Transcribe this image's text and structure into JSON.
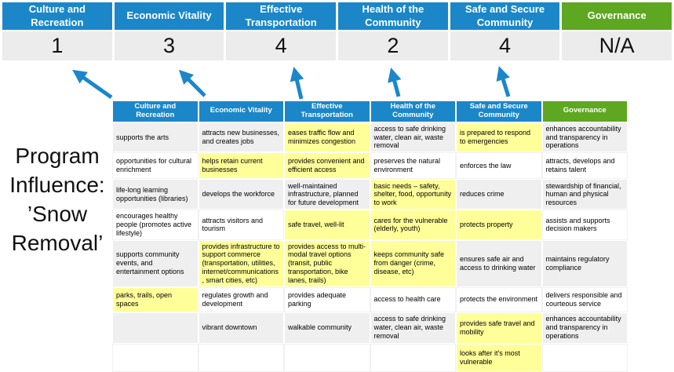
{
  "colors": {
    "header_blue": "#1B87C9",
    "header_green": "#5EA720",
    "highlight_yellow": "#FFFF99",
    "row_stripe_gray": "#EFEFEF",
    "score_band_gray": "#ECECEC",
    "arrow_blue": "#1B87C9"
  },
  "title": {
    "lines": [
      "Program",
      "Influence:",
      "’Snow",
      "Removal’"
    ]
  },
  "scoreboard": {
    "columns": [
      {
        "label": "Culture and Recreation",
        "score": "1"
      },
      {
        "label": "Economic Vitality",
        "score": "3"
      },
      {
        "label": "Effective Transportation",
        "score": "4"
      },
      {
        "label": "Health of the Community",
        "score": "2"
      },
      {
        "label": "Safe and Secure Community",
        "score": "4"
      },
      {
        "label": "Governance",
        "score": "N/A"
      }
    ]
  },
  "matrix": {
    "headers": [
      "Culture and Recreation",
      "Economic Vitality",
      "Effective Transportation",
      "Health of the Community",
      "Safe and Secure Community",
      "Governance"
    ],
    "rows": [
      [
        {
          "t": "supports the arts"
        },
        {
          "t": "attracts new businesses, and creates jobs"
        },
        {
          "t": "eases traffic flow and minimizes congestion",
          "h": true
        },
        {
          "t": "access to safe drinking water, clean air, waste removal"
        },
        {
          "t": "is prepared to respond to emergencies",
          "h": true
        },
        {
          "t": "enhances accountability and transparency in operations"
        }
      ],
      [
        {
          "t": "opportunities for cultural enrichment"
        },
        {
          "t": "helps retain current businesses",
          "h": true
        },
        {
          "t": "provides convenient and efficient access",
          "h": true
        },
        {
          "t": "preserves the natural environment"
        },
        {
          "t": "enforces the law"
        },
        {
          "t": "attracts, develops and retains talent"
        }
      ],
      [
        {
          "t": "life-long learning opportunities (libraries)"
        },
        {
          "t": "develops the workforce"
        },
        {
          "t": "well-maintained infrastructure, planned for future development"
        },
        {
          "t": "basic needs – safety, shelter, food, opportunity to work",
          "h": true
        },
        {
          "t": "reduces crime"
        },
        {
          "t": "stewardship of financial, human and physical resources"
        }
      ],
      [
        {
          "t": "encourages healthy people (promotes active lifestyle)"
        },
        {
          "t": "attracts visitors and tourism"
        },
        {
          "t": "safe travel, well-lit",
          "h": true
        },
        {
          "t": "cares for the vulnerable (elderly, youth)",
          "h": true
        },
        {
          "t": "protects property",
          "h": true
        },
        {
          "t": "assists and supports decision makers"
        }
      ],
      [
        {
          "t": "supports community events, and entertainment options"
        },
        {
          "t": "provides infrastructure to support commerce (transportation, utilities, internet/communications, smart cities, etc)",
          "h": true
        },
        {
          "t": "provides access to multi-modal travel options (transit, public transportation, bike lanes, trails)",
          "h": true
        },
        {
          "t": "keeps community safe from danger (crime, disease, etc)",
          "h": true
        },
        {
          "t": "ensures safe air and access to drinking water"
        },
        {
          "t": "maintains regulatory compliance"
        }
      ],
      [
        {
          "t": "parks, trails, open spaces",
          "h": true
        },
        {
          "t": "regulates growth and development"
        },
        {
          "t": "provides adequate parking"
        },
        {
          "t": "access to health care"
        },
        {
          "t": "protects the environment"
        },
        {
          "t": "delivers responsible and courteous service"
        }
      ],
      [
        {
          "t": ""
        },
        {
          "t": "vibrant downtown"
        },
        {
          "t": "walkable community"
        },
        {
          "t": "access to safe drinking water, clean air, waste removal"
        },
        {
          "t": "provides safe travel and mobility",
          "h": true
        },
        {
          "t": "enhances accountability and transparency in operations"
        }
      ],
      [
        {
          "t": ""
        },
        {
          "t": ""
        },
        {
          "t": ""
        },
        {
          "t": ""
        },
        {
          "t": "looks after it's most vulnerable",
          "h": true
        },
        {
          "t": ""
        }
      ]
    ]
  }
}
